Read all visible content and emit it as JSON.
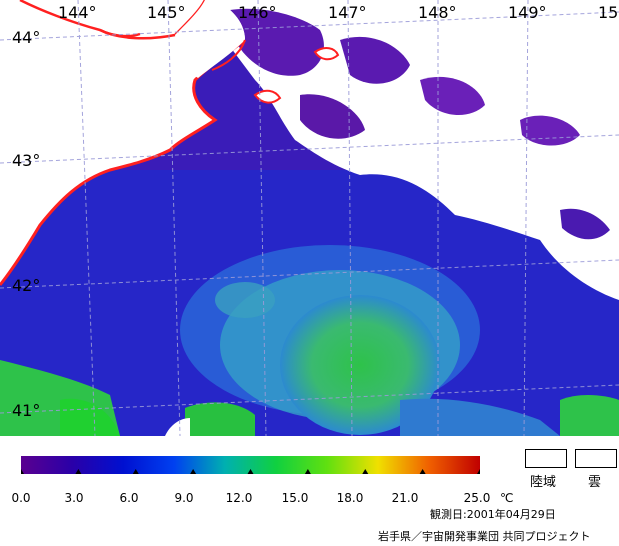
{
  "map": {
    "lon_labels": [
      "144°",
      "145°",
      "146°",
      "147°",
      "148°",
      "149°",
      "15"
    ],
    "lat_labels": [
      "44°",
      "43°",
      "42°",
      "41°"
    ]
  },
  "colorbar": {
    "ticks": [
      "0.0",
      "3.0",
      "6.0",
      "9.0",
      "12.0",
      "15.0",
      "18.0",
      "21.0",
      "25.0"
    ],
    "unit": "℃",
    "colors": [
      "#5a0090",
      "#2a00a8",
      "#0010d0",
      "#0040f0",
      "#00b0b0",
      "#10d040",
      "#60e010",
      "#f0e000",
      "#f06000",
      "#c00000"
    ]
  },
  "legend": {
    "land_label": "陸域",
    "cloud_label": "雲"
  },
  "observation_date": "観測日:2001年04月29日",
  "credit": "岩手県／宇宙開発事業団 共同プロジェクト"
}
